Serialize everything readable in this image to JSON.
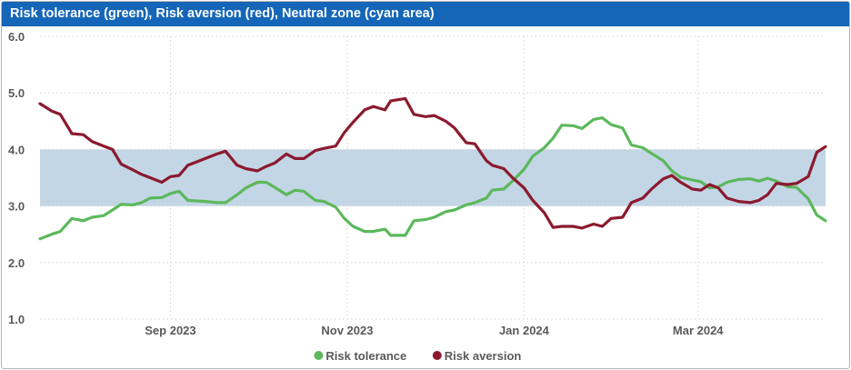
{
  "header": {
    "title": "Risk tolerance (green), Risk aversion (red), Neutral zone (cyan area)"
  },
  "colors": {
    "title_bg": "#1566b8",
    "tolerance": "#5cb85c",
    "aversion": "#8b1a2e",
    "band": "#c3d6e6",
    "grid": "#d4d4d4",
    "text": "#595959"
  },
  "chart_data": {
    "type": "line",
    "title": "Risk tolerance (green), Risk aversion (red), Neutral zone (cyan area)",
    "xlabel": "",
    "ylabel": "",
    "xlim": [
      "2023-07-18",
      "2024-04-14"
    ],
    "ylim": [
      1.0,
      6.0
    ],
    "y_ticks": [
      "1.0",
      "2.0",
      "3.0",
      "4.0",
      "5.0",
      "6.0"
    ],
    "x_ticks": [
      {
        "label": "Sep 2023",
        "date": "2023-09-01"
      },
      {
        "label": "Nov 2023",
        "date": "2023-11-01"
      },
      {
        "label": "Jan 2024",
        "date": "2024-01-01"
      },
      {
        "label": "Mar 2024",
        "date": "2024-03-01"
      }
    ],
    "neutral_zone": [
      3.0,
      4.0
    ],
    "grid": true,
    "legend_position": "bottom",
    "series": [
      {
        "name": "Risk tolerance",
        "color": "#5cb85c",
        "points": [
          [
            "2023-07-18",
            2.42
          ],
          [
            "2023-07-22",
            2.5
          ],
          [
            "2023-07-25",
            2.55
          ],
          [
            "2023-07-29",
            2.78
          ],
          [
            "2023-08-02",
            2.74
          ],
          [
            "2023-08-05",
            2.8
          ],
          [
            "2023-08-09",
            2.83
          ],
          [
            "2023-08-12",
            2.93
          ],
          [
            "2023-08-15",
            3.03
          ],
          [
            "2023-08-19",
            3.02
          ],
          [
            "2023-08-22",
            3.06
          ],
          [
            "2023-08-25",
            3.14
          ],
          [
            "2023-08-29",
            3.15
          ],
          [
            "2023-09-01",
            3.22
          ],
          [
            "2023-09-04",
            3.26
          ],
          [
            "2023-09-07",
            3.1
          ],
          [
            "2023-09-10",
            3.09
          ],
          [
            "2023-09-13",
            3.08
          ],
          [
            "2023-09-17",
            3.06
          ],
          [
            "2023-09-20",
            3.06
          ],
          [
            "2023-09-24",
            3.2
          ],
          [
            "2023-09-27",
            3.32
          ],
          [
            "2023-10-01",
            3.42
          ],
          [
            "2023-10-04",
            3.42
          ],
          [
            "2023-10-07",
            3.33
          ],
          [
            "2023-10-11",
            3.2
          ],
          [
            "2023-10-14",
            3.28
          ],
          [
            "2023-10-17",
            3.26
          ],
          [
            "2023-10-21",
            3.1
          ],
          [
            "2023-10-24",
            3.08
          ],
          [
            "2023-10-28",
            2.98
          ],
          [
            "2023-10-31",
            2.78
          ],
          [
            "2023-11-03",
            2.64
          ],
          [
            "2023-11-07",
            2.55
          ],
          [
            "2023-11-10",
            2.55
          ],
          [
            "2023-11-14",
            2.59
          ],
          [
            "2023-11-16",
            2.48
          ],
          [
            "2023-11-21",
            2.48
          ],
          [
            "2023-11-24",
            2.74
          ],
          [
            "2023-11-28",
            2.76
          ],
          [
            "2023-12-01",
            2.8
          ],
          [
            "2023-12-05",
            2.9
          ],
          [
            "2023-12-08",
            2.93
          ],
          [
            "2023-12-12",
            3.02
          ],
          [
            "2023-12-15",
            3.06
          ],
          [
            "2023-12-19",
            3.14
          ],
          [
            "2023-12-21",
            3.28
          ],
          [
            "2023-12-25",
            3.3
          ],
          [
            "2023-12-28",
            3.44
          ],
          [
            "2024-01-01",
            3.65
          ],
          [
            "2024-01-04",
            3.88
          ],
          [
            "2024-01-08",
            4.03
          ],
          [
            "2024-01-11",
            4.2
          ],
          [
            "2024-01-14",
            4.43
          ],
          [
            "2024-01-18",
            4.42
          ],
          [
            "2024-01-21",
            4.37
          ],
          [
            "2024-01-25",
            4.53
          ],
          [
            "2024-01-28",
            4.56
          ],
          [
            "2024-01-31",
            4.44
          ],
          [
            "2024-02-04",
            4.38
          ],
          [
            "2024-02-07",
            4.08
          ],
          [
            "2024-02-11",
            4.03
          ],
          [
            "2024-02-14",
            3.93
          ],
          [
            "2024-02-18",
            3.8
          ],
          [
            "2024-02-21",
            3.62
          ],
          [
            "2024-02-24",
            3.51
          ],
          [
            "2024-02-28",
            3.46
          ],
          [
            "2024-03-02",
            3.43
          ],
          [
            "2024-03-05",
            3.32
          ],
          [
            "2024-03-08",
            3.34
          ],
          [
            "2024-03-11",
            3.42
          ],
          [
            "2024-03-15",
            3.47
          ],
          [
            "2024-03-19",
            3.48
          ],
          [
            "2024-03-22",
            3.44
          ],
          [
            "2024-03-25",
            3.49
          ],
          [
            "2024-03-28",
            3.44
          ],
          [
            "2024-04-01",
            3.34
          ],
          [
            "2024-04-04",
            3.33
          ],
          [
            "2024-04-08",
            3.13
          ],
          [
            "2024-04-11",
            2.84
          ],
          [
            "2024-04-14",
            2.74
          ]
        ]
      },
      {
        "name": "Risk aversion",
        "color": "#8b1a2e",
        "points": [
          [
            "2023-07-18",
            4.81
          ],
          [
            "2023-07-22",
            4.68
          ],
          [
            "2023-07-25",
            4.62
          ],
          [
            "2023-07-29",
            4.28
          ],
          [
            "2023-08-02",
            4.26
          ],
          [
            "2023-08-05",
            4.14
          ],
          [
            "2023-08-09",
            4.06
          ],
          [
            "2023-08-12",
            4.0
          ],
          [
            "2023-08-15",
            3.74
          ],
          [
            "2023-08-19",
            3.64
          ],
          [
            "2023-08-22",
            3.56
          ],
          [
            "2023-08-25",
            3.5
          ],
          [
            "2023-08-29",
            3.42
          ],
          [
            "2023-09-01",
            3.52
          ],
          [
            "2023-09-04",
            3.54
          ],
          [
            "2023-09-07",
            3.72
          ],
          [
            "2023-09-10",
            3.78
          ],
          [
            "2023-09-13",
            3.84
          ],
          [
            "2023-09-17",
            3.92
          ],
          [
            "2023-09-20",
            3.97
          ],
          [
            "2023-09-24",
            3.72
          ],
          [
            "2023-09-27",
            3.66
          ],
          [
            "2023-10-01",
            3.62
          ],
          [
            "2023-10-04",
            3.7
          ],
          [
            "2023-10-07",
            3.76
          ],
          [
            "2023-10-11",
            3.92
          ],
          [
            "2023-10-14",
            3.84
          ],
          [
            "2023-10-17",
            3.84
          ],
          [
            "2023-10-21",
            3.98
          ],
          [
            "2023-10-24",
            4.02
          ],
          [
            "2023-10-28",
            4.06
          ],
          [
            "2023-10-31",
            4.3
          ],
          [
            "2023-11-03",
            4.48
          ],
          [
            "2023-11-07",
            4.7
          ],
          [
            "2023-11-10",
            4.76
          ],
          [
            "2023-11-14",
            4.7
          ],
          [
            "2023-11-16",
            4.86
          ],
          [
            "2023-11-21",
            4.9
          ],
          [
            "2023-11-24",
            4.62
          ],
          [
            "2023-11-28",
            4.58
          ],
          [
            "2023-12-01",
            4.6
          ],
          [
            "2023-12-05",
            4.5
          ],
          [
            "2023-12-08",
            4.38
          ],
          [
            "2023-12-12",
            4.12
          ],
          [
            "2023-12-15",
            4.1
          ],
          [
            "2023-12-19",
            3.8
          ],
          [
            "2023-12-21",
            3.72
          ],
          [
            "2023-12-25",
            3.66
          ],
          [
            "2023-12-28",
            3.5
          ],
          [
            "2024-01-01",
            3.32
          ],
          [
            "2024-01-04",
            3.1
          ],
          [
            "2024-01-08",
            2.88
          ],
          [
            "2024-01-11",
            2.62
          ],
          [
            "2024-01-14",
            2.64
          ],
          [
            "2024-01-18",
            2.64
          ],
          [
            "2024-01-21",
            2.61
          ],
          [
            "2024-01-25",
            2.68
          ],
          [
            "2024-01-28",
            2.64
          ],
          [
            "2024-01-31",
            2.78
          ],
          [
            "2024-02-04",
            2.8
          ],
          [
            "2024-02-07",
            3.06
          ],
          [
            "2024-02-11",
            3.14
          ],
          [
            "2024-02-14",
            3.3
          ],
          [
            "2024-02-18",
            3.48
          ],
          [
            "2024-02-21",
            3.54
          ],
          [
            "2024-02-24",
            3.42
          ],
          [
            "2024-02-28",
            3.3
          ],
          [
            "2024-03-02",
            3.28
          ],
          [
            "2024-03-05",
            3.38
          ],
          [
            "2024-03-08",
            3.32
          ],
          [
            "2024-03-11",
            3.14
          ],
          [
            "2024-03-15",
            3.08
          ],
          [
            "2024-03-19",
            3.06
          ],
          [
            "2024-03-22",
            3.1
          ],
          [
            "2024-03-25",
            3.2
          ],
          [
            "2024-03-28",
            3.4
          ],
          [
            "2024-04-01",
            3.38
          ],
          [
            "2024-04-04",
            3.4
          ],
          [
            "2024-04-08",
            3.52
          ],
          [
            "2024-04-11",
            3.95
          ],
          [
            "2024-04-14",
            4.05
          ]
        ]
      }
    ]
  },
  "legend": {
    "items": [
      {
        "label": "Risk tolerance",
        "color": "#5cb85c"
      },
      {
        "label": "Risk aversion",
        "color": "#8b1a2e"
      }
    ]
  }
}
